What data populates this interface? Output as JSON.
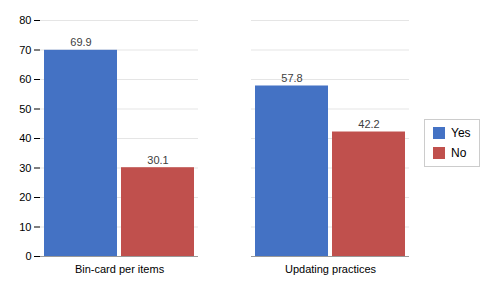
{
  "chart_data": {
    "type": "bar",
    "categories": [
      "Bin-card per items",
      "Updating practices"
    ],
    "series": [
      {
        "name": "Yes",
        "color": "#4472C4",
        "values": [
          69.9,
          57.8
        ]
      },
      {
        "name": "No",
        "color": "#C0504D",
        "values": [
          30.1,
          42.2
        ]
      }
    ],
    "ylim": [
      0,
      80
    ],
    "yticks": [
      0,
      10,
      20,
      30,
      40,
      50,
      60,
      70,
      80
    ],
    "grid": true,
    "legend": "right",
    "data_labels": true
  }
}
